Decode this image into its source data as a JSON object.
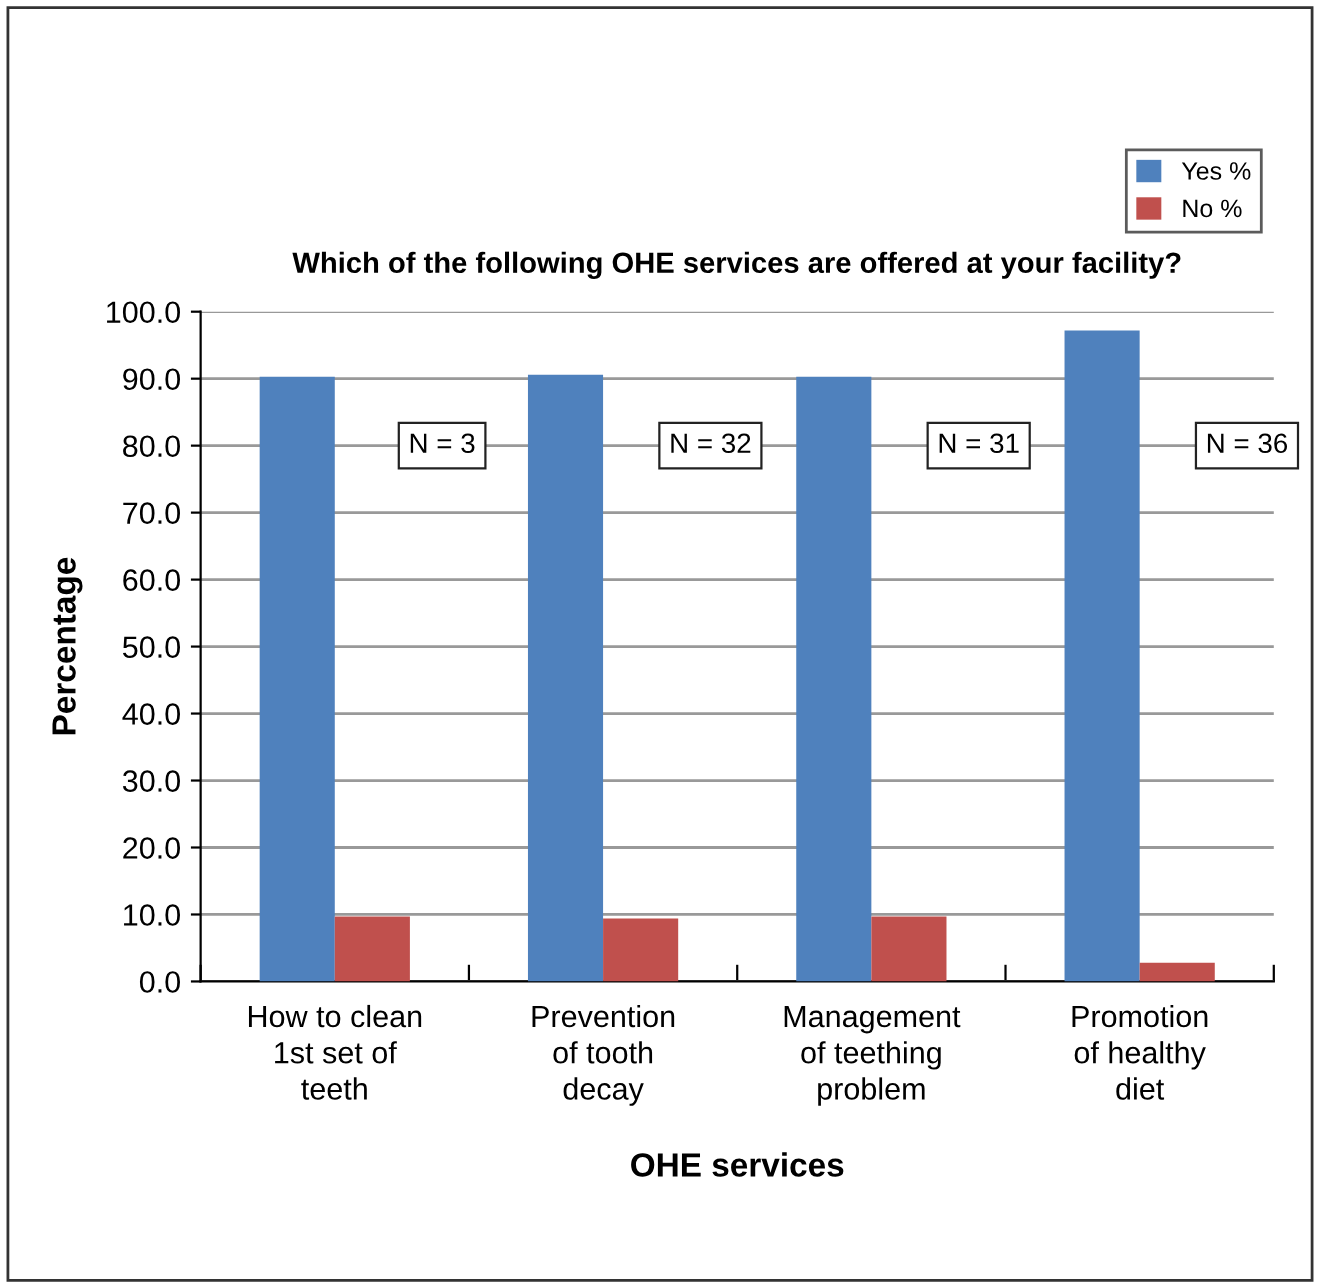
{
  "chart_data": {
    "type": "bar",
    "title": "Which of the following OHE services are offered at your facility?",
    "xlabel": "OHE services",
    "ylabel": "Percentage",
    "categories": [
      "How to clean\n1st set of\nteeth",
      "Prevention\nof tooth\ndecay",
      "Management\nof teething\nproblem",
      "Promotion\nof healthy\ndiet"
    ],
    "series": [
      {
        "name": "Yes %",
        "color": "#4f81bd",
        "values": [
          90.3,
          90.6,
          90.3,
          97.2
        ]
      },
      {
        "name": "No %",
        "color": "#c0504d",
        "values": [
          9.7,
          9.4,
          9.7,
          2.8
        ]
      }
    ],
    "ylim": [
      0,
      100
    ],
    "yticks": [
      {
        "value": 0,
        "label": "0.0"
      },
      {
        "value": 10,
        "label": "10.0"
      },
      {
        "value": 20,
        "label": "20.0"
      },
      {
        "value": 30,
        "label": "30.0"
      },
      {
        "value": 40,
        "label": "40.0"
      },
      {
        "value": 50,
        "label": "50.0"
      },
      {
        "value": 60,
        "label": "60.0"
      },
      {
        "value": 70,
        "label": "70.0"
      },
      {
        "value": 80,
        "label": "80.0"
      },
      {
        "value": 90,
        "label": "90.0"
      },
      {
        "value": 100,
        "label": "100.0"
      }
    ],
    "annotations": [
      "N = 3",
      "N = 32",
      "N = 31",
      "N = 36"
    ],
    "grid": "y",
    "legend": "top right"
  }
}
